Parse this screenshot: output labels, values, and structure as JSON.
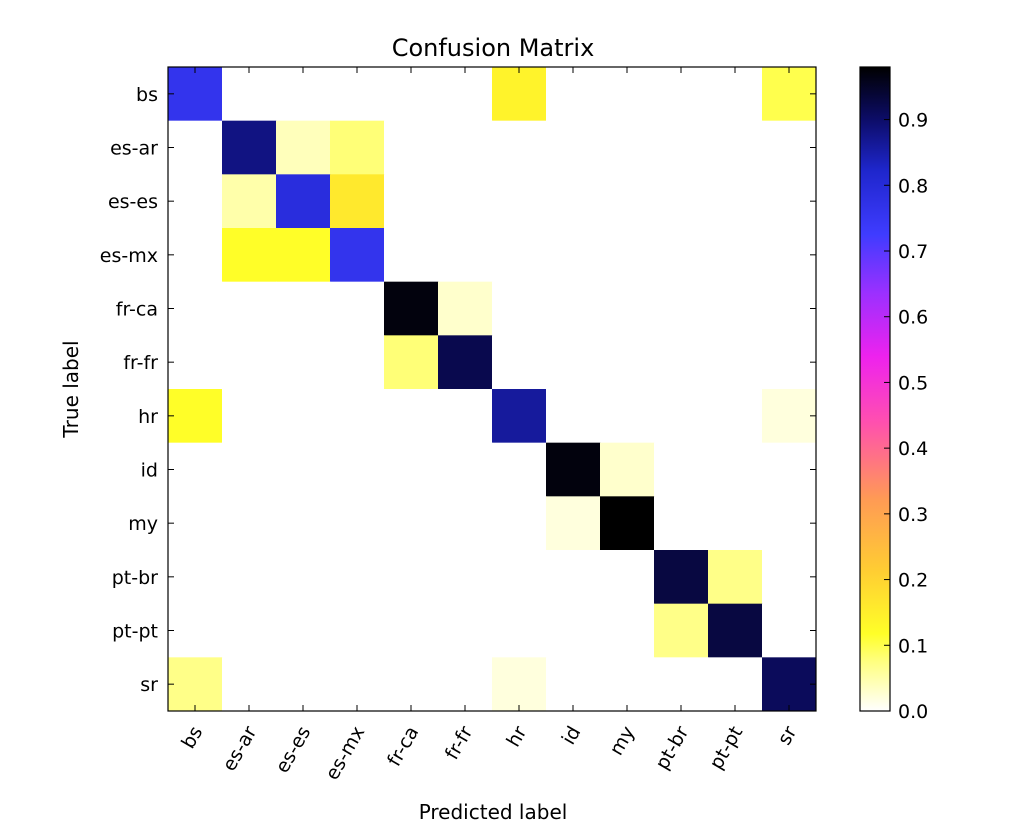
{
  "chart_data": {
    "type": "heatmap",
    "title": "Confusion Matrix",
    "xlabel": "Predicted label",
    "ylabel": "True label",
    "x_categories": [
      "bs",
      "es-ar",
      "es-es",
      "es-mx",
      "fr-ca",
      "fr-fr",
      "hr",
      "id",
      "my",
      "pt-br",
      "pt-pt",
      "sr"
    ],
    "y_categories": [
      "bs",
      "es-ar",
      "es-es",
      "es-mx",
      "fr-ca",
      "fr-fr",
      "hr",
      "id",
      "my",
      "pt-br",
      "pt-pt",
      "sr"
    ],
    "values": [
      [
        0.76,
        0.0,
        0.0,
        0.0,
        0.0,
        0.0,
        0.14,
        0.0,
        0.0,
        0.0,
        0.0,
        0.1
      ],
      [
        0.0,
        0.88,
        0.04,
        0.08,
        0.0,
        0.0,
        0.0,
        0.0,
        0.0,
        0.0,
        0.0,
        0.0
      ],
      [
        0.0,
        0.05,
        0.79,
        0.16,
        0.0,
        0.0,
        0.0,
        0.0,
        0.0,
        0.0,
        0.0,
        0.0
      ],
      [
        0.0,
        0.12,
        0.12,
        0.76,
        0.0,
        0.0,
        0.0,
        0.0,
        0.0,
        0.0,
        0.0,
        0.0
      ],
      [
        0.0,
        0.0,
        0.0,
        0.0,
        0.97,
        0.03,
        0.0,
        0.0,
        0.0,
        0.0,
        0.0,
        0.0
      ],
      [
        0.0,
        0.0,
        0.0,
        0.0,
        0.08,
        0.92,
        0.0,
        0.0,
        0.0,
        0.0,
        0.0,
        0.0
      ],
      [
        0.12,
        0.0,
        0.0,
        0.0,
        0.0,
        0.0,
        0.86,
        0.0,
        0.0,
        0.0,
        0.0,
        0.02
      ],
      [
        0.0,
        0.0,
        0.0,
        0.0,
        0.0,
        0.0,
        0.0,
        0.97,
        0.03,
        0.0,
        0.0,
        0.0
      ],
      [
        0.0,
        0.0,
        0.0,
        0.0,
        0.0,
        0.0,
        0.0,
        0.02,
        0.98,
        0.0,
        0.0,
        0.0
      ],
      [
        0.0,
        0.0,
        0.0,
        0.0,
        0.0,
        0.0,
        0.0,
        0.0,
        0.0,
        0.93,
        0.07,
        0.0
      ],
      [
        0.0,
        0.0,
        0.0,
        0.0,
        0.0,
        0.0,
        0.0,
        0.0,
        0.0,
        0.07,
        0.93,
        0.0
      ],
      [
        0.07,
        0.0,
        0.0,
        0.0,
        0.0,
        0.0,
        0.02,
        0.0,
        0.0,
        0.0,
        0.0,
        0.91
      ]
    ],
    "colorbar": {
      "range": [
        0.0,
        0.98
      ],
      "ticks": [
        "0.0",
        "0.1",
        "0.2",
        "0.3",
        "0.4",
        "0.5",
        "0.6",
        "0.7",
        "0.8",
        "0.9"
      ],
      "colormap": "gnuplot2_r"
    },
    "grid": false,
    "legend": "colorbar-right"
  }
}
